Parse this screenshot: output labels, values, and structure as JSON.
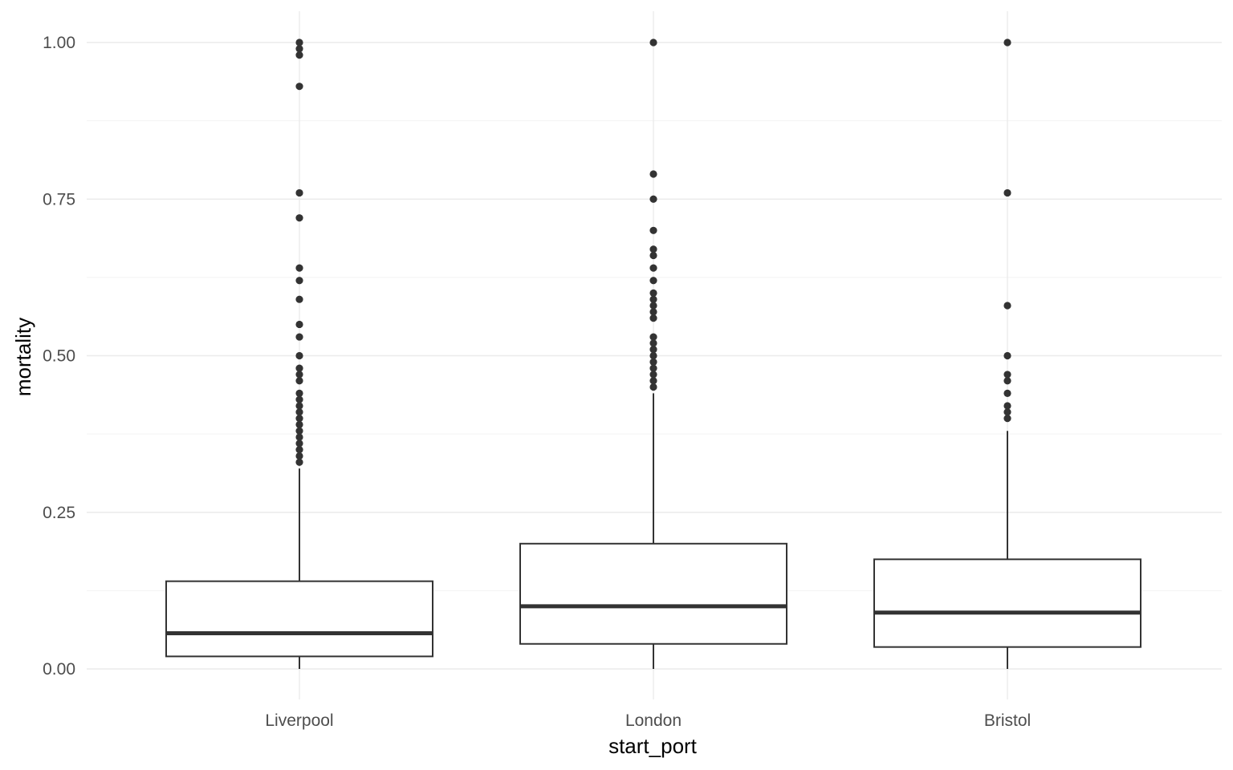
{
  "chart_data": {
    "type": "boxplot",
    "xlabel": "start_port",
    "ylabel": "mortality",
    "ylim": [
      -0.04,
      1.05
    ],
    "yticks": [
      {
        "value": 0.0,
        "label": "0.00"
      },
      {
        "value": 0.25,
        "label": "0.25"
      },
      {
        "value": 0.5,
        "label": "0.50"
      },
      {
        "value": 0.75,
        "label": "0.75"
      },
      {
        "value": 1.0,
        "label": "1.00"
      }
    ],
    "grid": true,
    "categories": [
      "Liverpool",
      "London",
      "Bristol"
    ],
    "boxes": [
      {
        "category": "Liverpool",
        "lower_whisker": 0.0,
        "q1": 0.02,
        "median": 0.057,
        "q3": 0.14,
        "upper_whisker": 0.32,
        "outliers": [
          0.33,
          0.34,
          0.35,
          0.36,
          0.37,
          0.38,
          0.39,
          0.4,
          0.41,
          0.42,
          0.43,
          0.44,
          0.46,
          0.47,
          0.48,
          0.5,
          0.53,
          0.55,
          0.59,
          0.62,
          0.64,
          0.72,
          0.76,
          0.93,
          0.98,
          0.99,
          1.0
        ]
      },
      {
        "category": "London",
        "lower_whisker": 0.0,
        "q1": 0.04,
        "median": 0.1,
        "q3": 0.2,
        "upper_whisker": 0.44,
        "outliers": [
          0.45,
          0.46,
          0.47,
          0.48,
          0.49,
          0.5,
          0.51,
          0.52,
          0.53,
          0.56,
          0.57,
          0.58,
          0.59,
          0.6,
          0.62,
          0.64,
          0.66,
          0.67,
          0.7,
          0.75,
          0.79,
          1.0
        ]
      },
      {
        "category": "Bristol",
        "lower_whisker": 0.0,
        "q1": 0.035,
        "median": 0.09,
        "q3": 0.175,
        "upper_whisker": 0.38,
        "outliers": [
          0.4,
          0.41,
          0.42,
          0.44,
          0.46,
          0.47,
          0.5,
          0.58,
          0.76,
          1.0
        ]
      }
    ],
    "colors": {
      "box_line": "#333333",
      "box_fill": "#ffffff",
      "grid_major": "#ebebeb",
      "grid_minor": "#f3f3f3",
      "tick_text": "#4d4d4d",
      "title_text": "#000000"
    }
  }
}
